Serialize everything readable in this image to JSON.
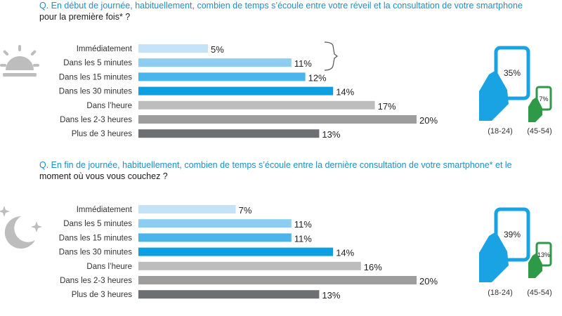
{
  "chart_data": [
    {
      "type": "bar",
      "orientation": "horizontal",
      "question_line1": "Q. En début de journée, habituellement, combien de temps s’écoule entre votre réveil et la consultation de votre smartphone",
      "question_line2": "pour la première fois* ?",
      "categories": [
        "Immédiatement",
        "Dans les 5 minutes",
        "Dans les 15 minutes",
        "Dans les 30 minutes",
        "Dans l’heure",
        "Dans les 2-3 heures",
        "Plus de 3 heures"
      ],
      "values": [
        5,
        11,
        12,
        14,
        17,
        20,
        13
      ],
      "value_labels": [
        "5%",
        "11%",
        "12%",
        "14%",
        "17%",
        "20%",
        "13%"
      ],
      "bar_colors": [
        "#c5e3f6",
        "#8ccdf1",
        "#49b5ea",
        "#0aa0e2",
        "#bdbdbd",
        "#9d9d9d",
        "#6e6f73"
      ],
      "age_groups": [
        {
          "label": "(18-24)",
          "value_label": "35%",
          "color": "#1aa3e3"
        },
        {
          "label": "(45-54)",
          "value_label": "7%",
          "color": "#2e9a47"
        }
      ]
    },
    {
      "type": "bar",
      "orientation": "horizontal",
      "question_line1": "Q. En fin de journée, habituellement, combien de temps s’écoule entre la dernière consultation de votre smartphone* et le",
      "question_line2": "moment où vous vous couchez ?",
      "categories": [
        "Immédiatement",
        "Dans les 5 minutes",
        "Dans les 15 minutes",
        "Dans les 30 minutes",
        "Dans l’heure",
        "Dans les 2-3 heures",
        "Plus de 3 heures"
      ],
      "values": [
        7,
        11,
        11,
        14,
        16,
        20,
        13
      ],
      "value_labels": [
        "7%",
        "11%",
        "11%",
        "14%",
        "16%",
        "20%",
        "13%"
      ],
      "bar_colors": [
        "#c5e3f6",
        "#8ccdf1",
        "#49b5ea",
        "#0aa0e2",
        "#bdbdbd",
        "#9d9d9d",
        "#6e6f73"
      ],
      "age_groups": [
        {
          "label": "(18-24)",
          "value_label": "39%",
          "color": "#1aa3e3"
        },
        {
          "label": "(45-54)",
          "value_label": "13%",
          "color": "#2e9a47"
        }
      ]
    }
  ],
  "icons": {
    "top": "sunrise-icon",
    "bottom": "moon-stars-icon"
  }
}
